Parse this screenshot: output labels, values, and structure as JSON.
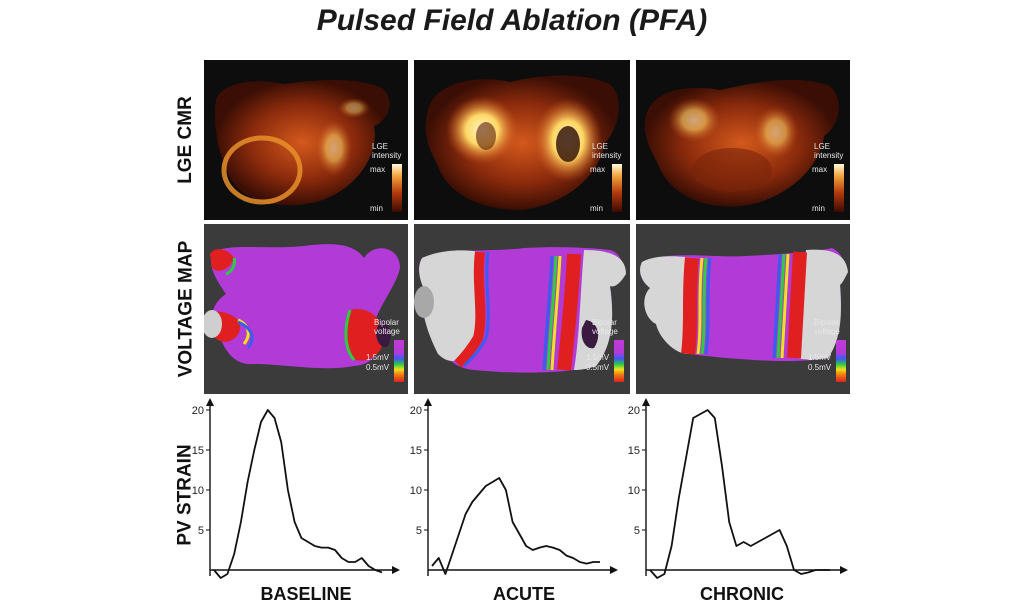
{
  "title": "Pulsed Field Ablation (PFA)",
  "row_labels": {
    "lge": "LGE CMR",
    "voltage": "VOLTAGE MAP",
    "strain": "PV STRAIN"
  },
  "lge_legend": {
    "title_line1": "LGE",
    "title_line2": "intensity",
    "max": "max",
    "min": "min"
  },
  "voltage_legend": {
    "title_line1": "Bipolar",
    "title_line2": "voltage",
    "high": "1.5mV",
    "low": "0.5mV"
  },
  "phases": [
    "BASELINE",
    "ACUTE",
    "CHRONIC"
  ],
  "colors": {
    "lge_hot": "#ffe98a",
    "lge_warm": "#c2410c",
    "voltage_healthy": "#b23ad6",
    "voltage_scar": "#e02020"
  },
  "chart_data": [
    {
      "type": "line",
      "title": "BASELINE",
      "ylabel": "PV STRAIN",
      "yticks": [
        5,
        10,
        15,
        20
      ],
      "ylim": [
        -1,
        21
      ],
      "xlim": [
        0,
        100
      ],
      "series": [
        {
          "name": "PV strain",
          "x": [
            0,
            4,
            8,
            12,
            16,
            20,
            24,
            28,
            32,
            36,
            40,
            44,
            48,
            52,
            56,
            60,
            64,
            68,
            72,
            76,
            80,
            84,
            88,
            92,
            96,
            100
          ],
          "y": [
            0,
            -1,
            -0.5,
            2,
            6,
            11,
            15,
            18.5,
            20,
            19,
            16,
            10,
            6,
            4,
            3.5,
            3,
            2.8,
            2.8,
            2.5,
            1.5,
            1,
            1,
            1.5,
            0.5,
            0,
            -0.3
          ]
        }
      ]
    },
    {
      "type": "line",
      "title": "ACUTE",
      "yticks": [
        5,
        10,
        15,
        20
      ],
      "ylim": [
        -1,
        21
      ],
      "xlim": [
        0,
        100
      ],
      "series": [
        {
          "name": "PV strain",
          "x": [
            0,
            4,
            8,
            12,
            16,
            20,
            24,
            28,
            32,
            36,
            40,
            44,
            48,
            52,
            56,
            60,
            64,
            68,
            72,
            76,
            80,
            84,
            88,
            92,
            96,
            100
          ],
          "y": [
            0.5,
            1.5,
            -0.5,
            2,
            4.5,
            7,
            8.5,
            9.5,
            10.5,
            11,
            11.5,
            10,
            6,
            4.5,
            3,
            2.5,
            2.8,
            3,
            2.8,
            2.5,
            1.8,
            1.5,
            1,
            0.8,
            1,
            1
          ]
        }
      ]
    },
    {
      "type": "line",
      "title": "CHRONIC",
      "yticks": [
        5,
        10,
        15,
        20
      ],
      "ylim": [
        -1,
        21
      ],
      "xlim": [
        0,
        100
      ],
      "series": [
        {
          "name": "PV strain",
          "x": [
            0,
            4,
            8,
            12,
            16,
            20,
            24,
            28,
            32,
            36,
            40,
            44,
            48,
            52,
            56,
            60,
            64,
            68,
            72,
            76,
            80,
            84,
            88,
            92,
            96,
            100
          ],
          "y": [
            0,
            -1,
            -0.5,
            3,
            9,
            14,
            19,
            19.5,
            20,
            19,
            13,
            6,
            3,
            3.5,
            3,
            3.5,
            4,
            4.5,
            5,
            3,
            0,
            -0.5,
            -0.3,
            0,
            0,
            0
          ]
        }
      ]
    }
  ]
}
